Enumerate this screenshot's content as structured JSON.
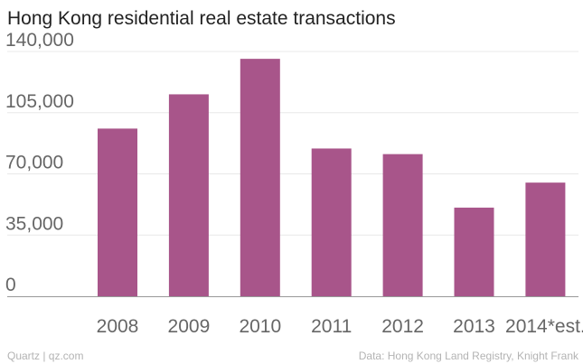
{
  "chart_data": {
    "type": "bar",
    "title": "Hong Kong residential real estate transactions",
    "categories": [
      "2008",
      "2009",
      "2010",
      "2011",
      "2012",
      "2013",
      "2014*est."
    ],
    "values": [
      95900,
      115500,
      135800,
      84500,
      81300,
      50700,
      65000
    ],
    "yticks": [
      0,
      35000,
      70000,
      105000,
      140000
    ],
    "ytick_labels": [
      "0",
      "35,000",
      "70,000",
      "105,000",
      "140,000"
    ],
    "ylim": [
      0,
      140000
    ],
    "grid": true,
    "bar_color": "#a8558a",
    "xlabel": "",
    "ylabel": ""
  },
  "footer": {
    "left": "Quartz | qz.com",
    "right": "Data: Hong Kong Land Registry, Knight Frank"
  }
}
